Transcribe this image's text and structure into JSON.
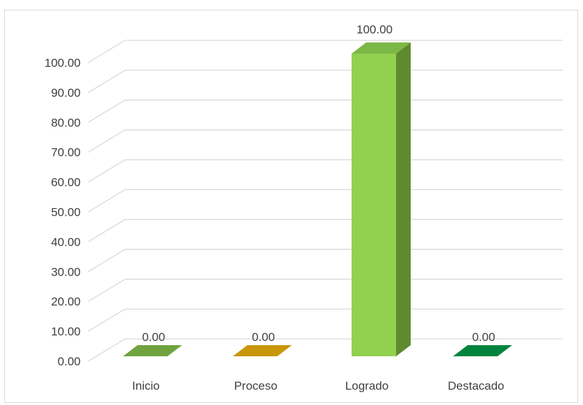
{
  "chart_data": {
    "type": "bar",
    "title": "",
    "xlabel": "",
    "ylabel": "",
    "categories": [
      "Inicio",
      "Proceso",
      "Logrado",
      "Destacado"
    ],
    "values": [
      0.0,
      0.0,
      100.0,
      0.0
    ],
    "value_labels": [
      "0.00",
      "0.00",
      "100.00",
      "0.00"
    ],
    "yticks": [
      0,
      10,
      20,
      30,
      40,
      50,
      60,
      70,
      80,
      90,
      100
    ],
    "ytick_labels": [
      "0.00",
      "10.00",
      "20.00",
      "30.00",
      "40.00",
      "50.00",
      "60.00",
      "70.00",
      "80.00",
      "90.00",
      "100.00"
    ],
    "ylim": [
      0,
      100
    ],
    "grid": true,
    "legend": "none",
    "style": "3d-column",
    "colors": [
      "#70a33f",
      "#c9960a",
      "#92d050",
      "#00843d"
    ],
    "side_colors": [
      "#4f7a2a",
      "#9a7206",
      "#5f8a2e",
      "#005e2b"
    ],
    "top_colors": [
      "#5f8f33",
      "#b08306",
      "#7cb845",
      "#006e33"
    ],
    "grid_color": "#d9d9d9",
    "label_color": "#404040"
  }
}
